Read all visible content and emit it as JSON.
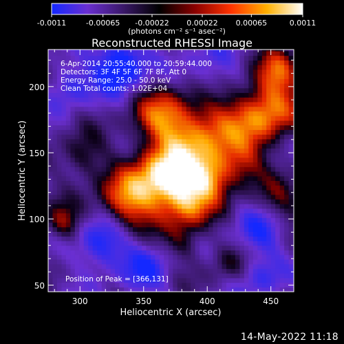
{
  "chart_data": {
    "type": "heatmap",
    "title": "Reconstructed RHESSI Image",
    "xlabel": "Heliocentric X (arcsec)",
    "ylabel": "Heliocentric Y (arcsec)",
    "xlim": [
      275,
      468
    ],
    "ylim": [
      45,
      228
    ],
    "xticks": [
      300,
      350,
      400,
      450
    ],
    "yticks": [
      50,
      100,
      150,
      200
    ],
    "colorbar": {
      "ticks": [
        "-0.0011",
        "-0.00065",
        "-0.00022",
        "0.00022",
        "0.00065",
        "0.0011"
      ],
      "units": "(photons cm⁻² s⁻¹ asec⁻²)",
      "range": [
        -0.0011,
        0.0011
      ],
      "colors": [
        "#1428ff",
        "#6a2fd0",
        "#3a1868",
        "#000000",
        "#8a0000",
        "#ff3300",
        "#ffb000",
        "#ffffff"
      ]
    },
    "annotations": [
      "6-Apr-2014 20:55:40.000 to 20:59:44.000",
      "Detectors: 3F 4F 5F 6F 7F 8F, Att 0",
      "Energy Range: 25.0 - 50.0 keV",
      "Clean     Total counts: 1.02E+04"
    ],
    "peak_label": "Position of Peak = [366,131]",
    "peak": [
      366,
      131
    ],
    "sources": [
      {
        "x": 395,
        "y": 165,
        "amp": 1.0,
        "sigma": 24
      },
      {
        "x": 365,
        "y": 130,
        "amp": 1.25,
        "sigma": 16
      },
      {
        "x": 335,
        "y": 112,
        "amp": 0.9,
        "sigma": 16
      },
      {
        "x": 360,
        "y": 175,
        "amp": 0.6,
        "sigma": 15
      },
      {
        "x": 383,
        "y": 110,
        "amp": 0.8,
        "sigma": 14
      },
      {
        "x": 400,
        "y": 130,
        "amp": 0.7,
        "sigma": 12
      },
      {
        "x": 445,
        "y": 180,
        "amp": 0.95,
        "sigma": 17
      },
      {
        "x": 455,
        "y": 210,
        "amp": 0.7,
        "sigma": 12
      },
      {
        "x": 300,
        "y": 145,
        "amp": 0.45,
        "sigma": 12
      },
      {
        "x": 285,
        "y": 95,
        "amp": 0.55,
        "sigma": 10
      },
      {
        "x": 455,
        "y": 110,
        "amp": 0.4,
        "sigma": 14
      },
      {
        "x": 425,
        "y": 140,
        "amp": 0.45,
        "sigma": 12
      },
      {
        "x": 380,
        "y": 80,
        "amp": 0.35,
        "sigma": 10
      },
      {
        "x": 415,
        "y": 65,
        "amp": 0.3,
        "sigma": 10
      },
      {
        "x": 330,
        "y": 215,
        "amp": -0.9,
        "sigma": 14
      },
      {
        "x": 315,
        "y": 80,
        "amp": -0.7,
        "sigma": 14
      },
      {
        "x": 400,
        "y": 205,
        "amp": -0.5,
        "sigma": 18
      },
      {
        "x": 440,
        "y": 90,
        "amp": -0.5,
        "sigma": 14
      },
      {
        "x": 290,
        "y": 200,
        "amp": -0.5,
        "sigma": 12
      },
      {
        "x": 350,
        "y": 60,
        "amp": -0.45,
        "sigma": 14
      },
      {
        "x": 440,
        "y": 55,
        "amp": -0.4,
        "sigma": 12
      }
    ]
  },
  "footer": {
    "date": "14-May-2022 11:18"
  }
}
